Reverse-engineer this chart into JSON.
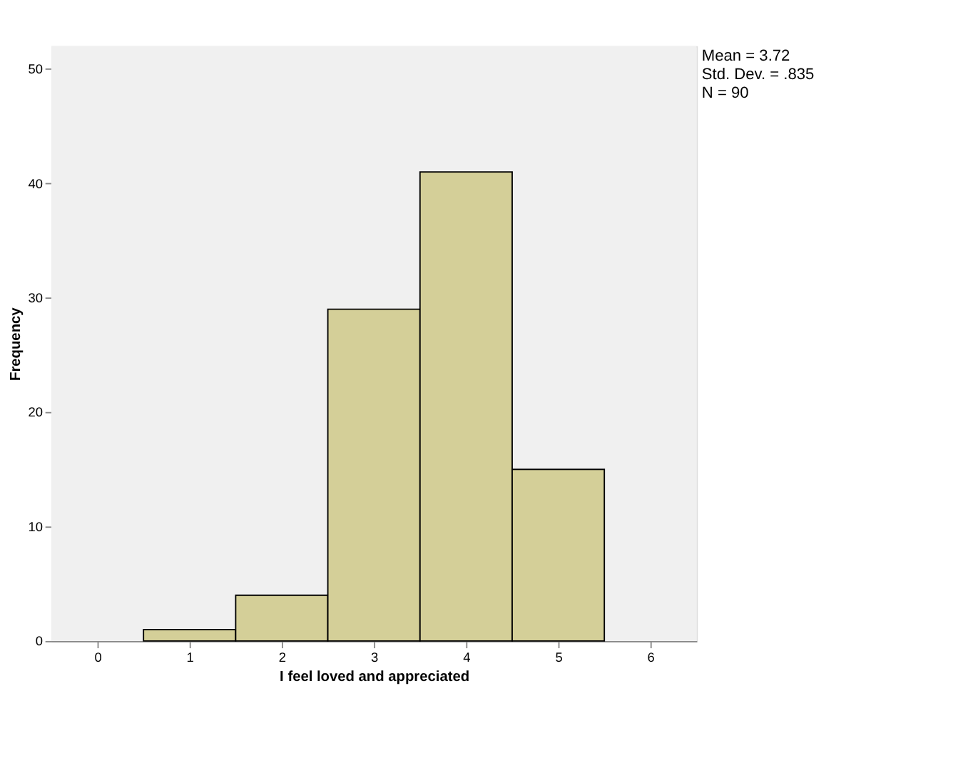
{
  "chart_data": {
    "type": "histogram",
    "xlabel": "I feel loved and appreciated",
    "ylabel": "Frequency",
    "bins": [
      0.5,
      1.5,
      2.5,
      3.5,
      4.5,
      5.5
    ],
    "values": [
      1,
      4,
      29,
      41,
      15
    ],
    "color": "#d4cf98",
    "xlim": [
      -0.5,
      6.5
    ],
    "xticks": [
      0,
      1,
      2,
      3,
      4,
      5,
      6
    ],
    "ylim": [
      0,
      52
    ],
    "yticks": [
      0,
      10,
      20,
      30,
      40,
      50
    ],
    "grid": false,
    "annotations": [
      "Mean = 3.72",
      "Std. Dev. = .835",
      "N = 90"
    ]
  }
}
